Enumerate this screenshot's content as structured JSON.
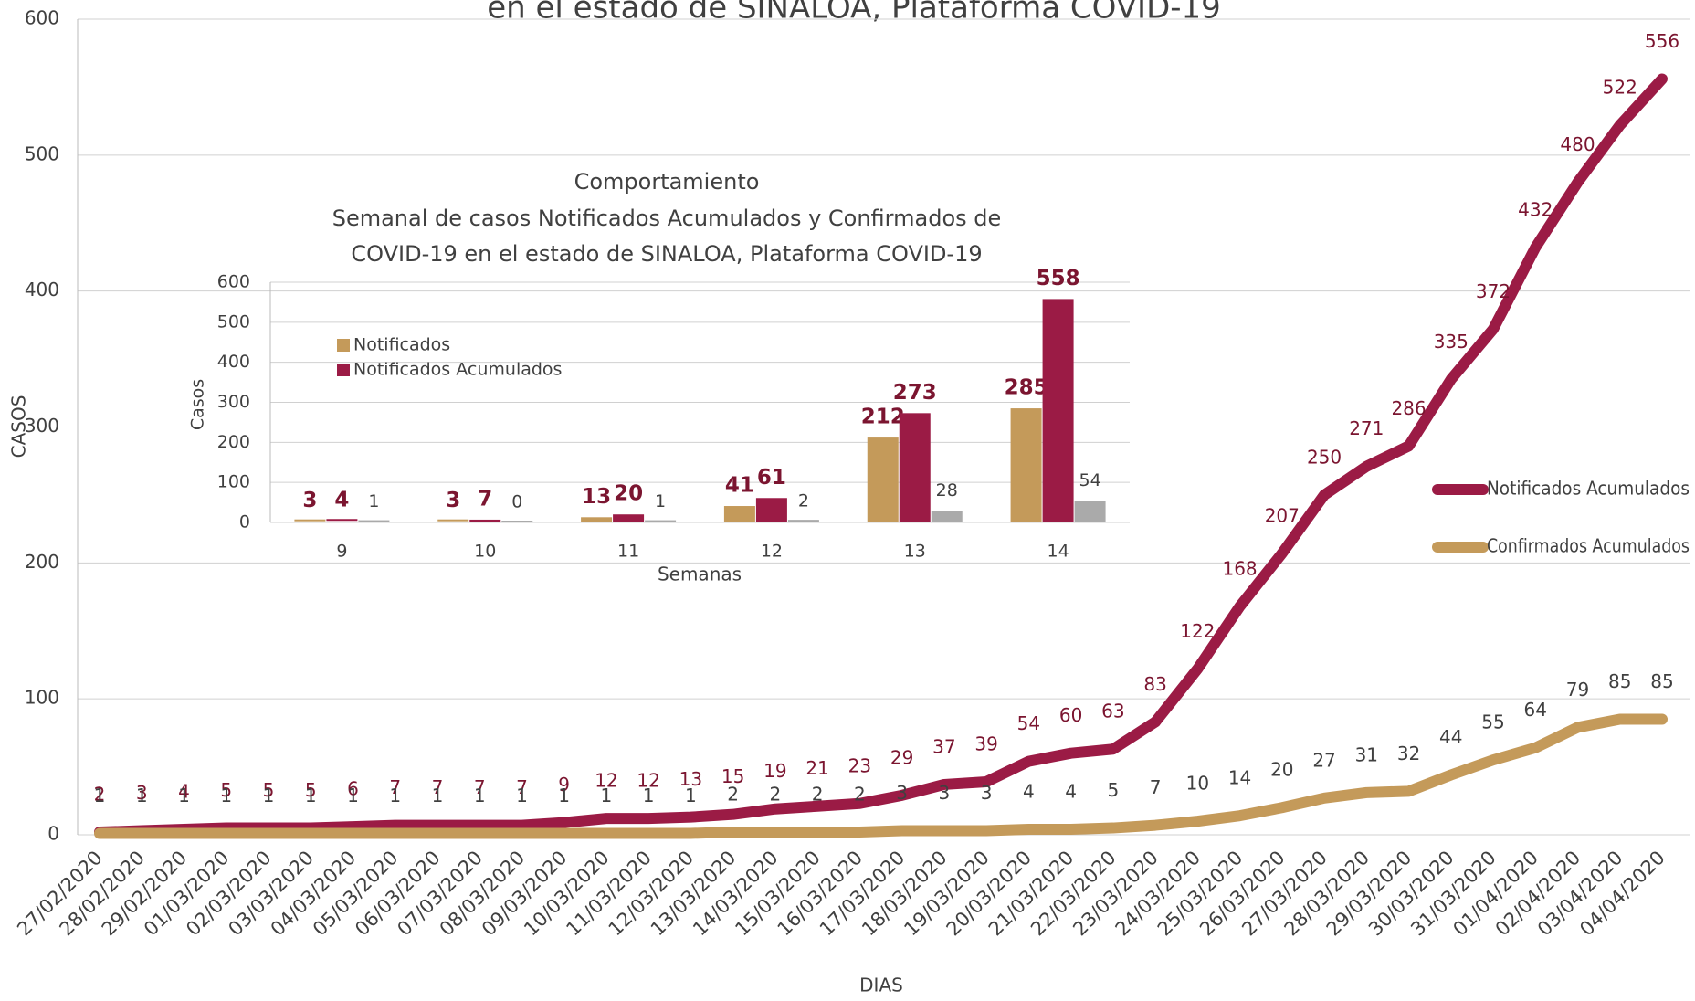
{
  "chart_data": [
    {
      "type": "line",
      "title": "en el estado de SINALOA, Plataforma COVID-19",
      "x_label": "DIAS",
      "y_label": "CASOS",
      "categories": [
        "27/02/2020",
        "28/02/2020",
        "29/02/2020",
        "01/03/2020",
        "02/03/2020",
        "03/03/2020",
        "04/03/2020",
        "05/03/2020",
        "06/03/2020",
        "07/03/2020",
        "08/03/2020",
        "09/03/2020",
        "10/03/2020",
        "11/03/2020",
        "12/03/2020",
        "13/03/2020",
        "14/03/2020",
        "15/03/2020",
        "16/03/2020",
        "17/03/2020",
        "18/03/2020",
        "19/03/2020",
        "20/03/2020",
        "21/03/2020",
        "22/03/2020",
        "23/03/2020",
        "24/03/2020",
        "25/03/2020",
        "26/03/2020",
        "27/03/2020",
        "28/03/2020",
        "29/03/2020",
        "30/03/2020",
        "31/03/2020",
        "01/04/2020",
        "02/04/2020",
        "03/04/2020",
        "04/04/2020"
      ],
      "series": [
        {
          "name": "Notificados Acumulados",
          "color": "#9b1b45",
          "label_color": "#7b1530",
          "values": [
            2,
            3,
            4,
            5,
            5,
            5,
            6,
            7,
            7,
            7,
            7,
            9,
            12,
            12,
            13,
            15,
            19,
            21,
            23,
            29,
            37,
            39,
            54,
            60,
            63,
            83,
            122,
            168,
            207,
            250,
            271,
            286,
            335,
            372,
            432,
            480,
            522,
            556
          ]
        },
        {
          "name": "Confirmados Acumulados",
          "color": "#c49a5a",
          "label_color": "#404040",
          "values": [
            1,
            1,
            1,
            1,
            1,
            1,
            1,
            1,
            1,
            1,
            1,
            1,
            1,
            1,
            1,
            2,
            2,
            2,
            2,
            3,
            3,
            3,
            4,
            4,
            5,
            7,
            10,
            14,
            20,
            27,
            31,
            32,
            44,
            55,
            64,
            79,
            85,
            85
          ]
        }
      ],
      "ylim": [
        0,
        600
      ],
      "yticks": [
        0,
        100,
        200,
        300,
        400,
        500,
        600
      ],
      "grid": true,
      "legend": "right"
    },
    {
      "type": "bar",
      "title": [
        "Comportamiento",
        "Semanal de casos Notificados Acumulados y Confirmados de",
        "COVID-19 en el estado de SINALOA, Plataforma COVID-19"
      ],
      "x_label": "Semanas",
      "y_label": "Casos",
      "categories": [
        "9",
        "10",
        "11",
        "12",
        "13",
        "14"
      ],
      "series": [
        {
          "name": "Notificados",
          "color": "#c49a5a",
          "values": [
            3,
            3,
            13,
            41,
            212,
            285
          ]
        },
        {
          "name": "Notificados Acumulados",
          "color": "#9b1b45",
          "values": [
            4,
            7,
            20,
            61,
            273,
            558
          ]
        },
        {
          "color": "#aaaaaa",
          "values": [
            1,
            0,
            1,
            2,
            28,
            54
          ]
        }
      ],
      "ylim": [
        0,
        600
      ],
      "yticks": [
        0,
        100,
        200,
        300,
        400,
        500,
        600
      ],
      "grid": true,
      "legend": "top-left"
    }
  ]
}
